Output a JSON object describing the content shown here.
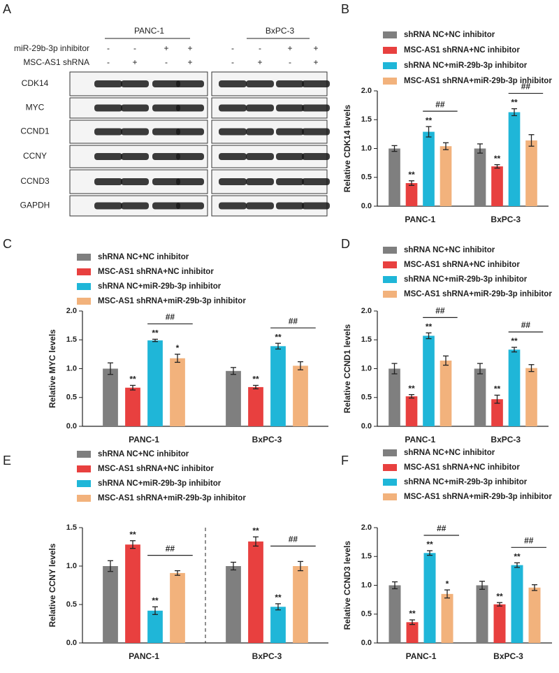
{
  "blot": {
    "panel": "A",
    "groups": [
      "PANC-1",
      "BxPC-3"
    ],
    "conditions": [
      {
        "label": "miR-29b-3p inhibitor",
        "signs": [
          "-",
          "-",
          "+",
          "+",
          "-",
          "-",
          "+",
          "+"
        ]
      },
      {
        "label": "MSC-AS1 shRNA",
        "signs": [
          "-",
          "+",
          "-",
          "+",
          "-",
          "+",
          "-",
          "+"
        ]
      }
    ],
    "proteins": [
      "CDK14",
      "MYC",
      "CCND1",
      "CCNY",
      "CCND3",
      "GAPDH"
    ]
  },
  "chart_data": [
    {
      "type": "bar",
      "panel": "B",
      "ylabel": "Relative CDK14 levels",
      "categories": [
        "PANC-1",
        "BxPC-3"
      ],
      "ylim": [
        0,
        2.0
      ],
      "yticks": [
        {
          "value": 0,
          "label": "0.0"
        },
        {
          "value": 0.5,
          "label": "0.5"
        },
        {
          "value": 1,
          "label": "1.0"
        },
        {
          "value": 1.5,
          "label": "1.5"
        },
        {
          "value": 2,
          "label": "2.0"
        }
      ],
      "brackets": [
        "##",
        "##"
      ],
      "series": [
        {
          "name": "shRNA NC+NC inhibitor",
          "color": "#7f7f7f",
          "values": [
            1.0,
            1.0
          ],
          "errors": [
            0.05,
            0.08
          ],
          "annotations": [
            null,
            null
          ]
        },
        {
          "name": "MSC-AS1 shRNA+NC inhibitor",
          "color": "#e8403f",
          "values": [
            0.4,
            0.69
          ],
          "errors": [
            0.04,
            0.03
          ],
          "annotations": [
            "**",
            "**"
          ]
        },
        {
          "name": "shRNA NC+miR-29b-3p inhibitor",
          "color": "#1fb6d8",
          "values": [
            1.29,
            1.63
          ],
          "errors": [
            0.09,
            0.06
          ],
          "annotations": [
            "**",
            "**"
          ]
        },
        {
          "name": "MSC-AS1 shRNA+miR-29b-3p inhibitor",
          "color": "#f2b27c",
          "values": [
            1.04,
            1.14
          ],
          "errors": [
            0.06,
            0.1
          ],
          "annotations": [
            null,
            null
          ]
        }
      ]
    },
    {
      "type": "bar",
      "panel": "C",
      "ylabel": "Relative MYC levels",
      "categories": [
        "PANC-1",
        "BxPC-3"
      ],
      "ylim": [
        0,
        2.0
      ],
      "yticks": [
        {
          "value": 0,
          "label": "0.0"
        },
        {
          "value": 0.5,
          "label": "0.5"
        },
        {
          "value": 1,
          "label": "1.0"
        },
        {
          "value": 1.5,
          "label": "1.5"
        },
        {
          "value": 2,
          "label": "2.0"
        }
      ],
      "brackets": [
        "##",
        "##"
      ],
      "series": [
        {
          "name": "shRNA NC+NC inhibitor",
          "color": "#7f7f7f",
          "values": [
            1.0,
            0.96
          ],
          "errors": [
            0.1,
            0.06
          ],
          "annotations": [
            null,
            null
          ]
        },
        {
          "name": "MSC-AS1 shRNA+NC inhibitor",
          "color": "#e8403f",
          "values": [
            0.67,
            0.68
          ],
          "errors": [
            0.04,
            0.03
          ],
          "annotations": [
            "**",
            "**"
          ]
        },
        {
          "name": "shRNA NC+miR-29b-3p inhibitor",
          "color": "#1fb6d8",
          "values": [
            1.49,
            1.39
          ],
          "errors": [
            0.02,
            0.05
          ],
          "annotations": [
            "**",
            "**"
          ]
        },
        {
          "name": "MSC-AS1 shRNA+miR-29b-3p inhibitor",
          "color": "#f2b27c",
          "values": [
            1.18,
            1.05
          ],
          "errors": [
            0.07,
            0.07
          ],
          "annotations": [
            "*",
            null
          ]
        }
      ]
    },
    {
      "type": "bar",
      "panel": "D",
      "ylabel": "Relative CCND1 levels",
      "categories": [
        "PANC-1",
        "BxPC-3"
      ],
      "ylim": [
        0,
        2.0
      ],
      "yticks": [
        {
          "value": 0,
          "label": "0.0"
        },
        {
          "value": 0.5,
          "label": "0.5"
        },
        {
          "value": 1,
          "label": "1.0"
        },
        {
          "value": 1.5,
          "label": "1.5"
        },
        {
          "value": 2,
          "label": "2.0"
        }
      ],
      "brackets": [
        "##",
        "##"
      ],
      "series": [
        {
          "name": "shRNA NC+NC inhibitor",
          "color": "#7f7f7f",
          "values": [
            1.0,
            1.0
          ],
          "errors": [
            0.09,
            0.09
          ],
          "annotations": [
            null,
            null
          ]
        },
        {
          "name": "MSC-AS1 shRNA+NC inhibitor",
          "color": "#e8403f",
          "values": [
            0.52,
            0.47
          ],
          "errors": [
            0.03,
            0.07
          ],
          "annotations": [
            "**",
            "**"
          ]
        },
        {
          "name": "shRNA NC+miR-29b-3p inhibitor",
          "color": "#1fb6d8",
          "values": [
            1.57,
            1.33
          ],
          "errors": [
            0.05,
            0.04
          ],
          "annotations": [
            "**",
            "**"
          ]
        },
        {
          "name": "MSC-AS1 shRNA+miR-29b-3p inhibitor",
          "color": "#f2b27c",
          "values": [
            1.14,
            1.01
          ],
          "errors": [
            0.08,
            0.06
          ],
          "annotations": [
            null,
            null
          ]
        }
      ]
    },
    {
      "type": "bar",
      "panel": "E",
      "ylabel": "Relative CCNY levels",
      "categories": [
        "PANC-1",
        "BxPC-3"
      ],
      "divider": true,
      "ylim": [
        0,
        1.5
      ],
      "yticks": [
        {
          "value": 0,
          "label": "0.0"
        },
        {
          "value": 0.5,
          "label": "0.5"
        },
        {
          "value": 1,
          "label": "1.0"
        },
        {
          "value": 1.5,
          "label": "1.5"
        }
      ],
      "brackets": [
        "##",
        "##"
      ],
      "series": [
        {
          "name": "shRNA NC+NC inhibitor",
          "color": "#7f7f7f",
          "values": [
            1.0,
            1.0
          ],
          "errors": [
            0.07,
            0.05
          ],
          "annotations": [
            null,
            null
          ]
        },
        {
          "name": "MSC-AS1 shRNA+NC inhibitor",
          "color": "#e8403f",
          "values": [
            1.28,
            1.32
          ],
          "errors": [
            0.05,
            0.06
          ],
          "annotations": [
            "**",
            "**"
          ]
        },
        {
          "name": "shRNA NC+miR-29b-3p inhibitor",
          "color": "#1fb6d8",
          "values": [
            0.42,
            0.47
          ],
          "errors": [
            0.05,
            0.04
          ],
          "annotations": [
            "**",
            "**"
          ]
        },
        {
          "name": "MSC-AS1 shRNA+miR-29b-3p inhibitor",
          "color": "#f2b27c",
          "values": [
            0.91,
            1.0
          ],
          "errors": [
            0.03,
            0.06
          ],
          "annotations": [
            null,
            null
          ]
        }
      ]
    },
    {
      "type": "bar",
      "panel": "F",
      "ylabel": "Relative CCND3 levels",
      "categories": [
        "PANC-1",
        "BxPC-3"
      ],
      "ylim": [
        0,
        2.0
      ],
      "yticks": [
        {
          "value": 0,
          "label": "0.0"
        },
        {
          "value": 0.5,
          "label": "0.5"
        },
        {
          "value": 1,
          "label": "1.0"
        },
        {
          "value": 1.5,
          "label": "1.5"
        },
        {
          "value": 2,
          "label": "2.0"
        }
      ],
      "brackets": [
        "##",
        "##"
      ],
      "series": [
        {
          "name": "shRNA NC+NC inhibitor",
          "color": "#7f7f7f",
          "values": [
            1.0,
            1.0
          ],
          "errors": [
            0.06,
            0.07
          ],
          "annotations": [
            null,
            null
          ]
        },
        {
          "name": "MSC-AS1 shRNA+NC inhibitor",
          "color": "#e8403f",
          "values": [
            0.36,
            0.67
          ],
          "errors": [
            0.04,
            0.03
          ],
          "annotations": [
            "**",
            "**"
          ]
        },
        {
          "name": "shRNA NC+miR-29b-3p inhibitor",
          "color": "#1fb6d8",
          "values": [
            1.56,
            1.35
          ],
          "errors": [
            0.04,
            0.04
          ],
          "annotations": [
            "**",
            "**"
          ]
        },
        {
          "name": "MSC-AS1 shRNA+miR-29b-3p inhibitor",
          "color": "#f2b27c",
          "values": [
            0.85,
            0.96
          ],
          "errors": [
            0.07,
            0.05
          ],
          "annotations": [
            "*",
            null
          ]
        }
      ]
    }
  ]
}
